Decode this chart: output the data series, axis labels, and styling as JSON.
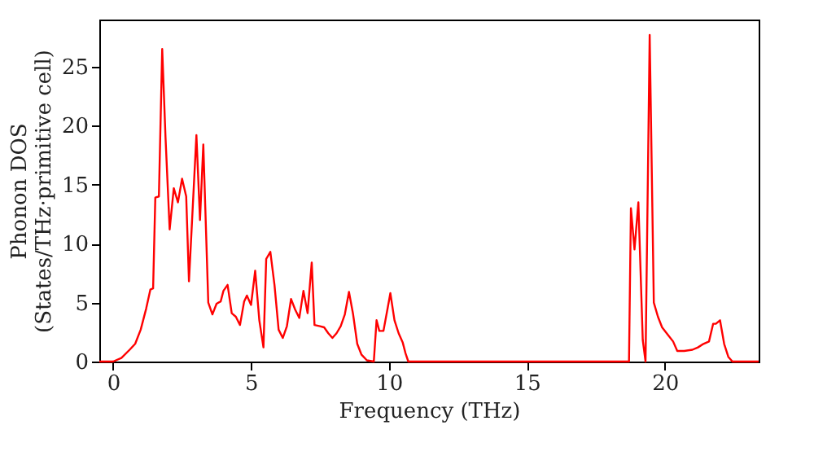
{
  "chart_data": {
    "type": "line",
    "xlabel": "Frequency (THz)",
    "ylabel": "Phonon DOS\n(States/THz·primitive cell)",
    "x": [
      -0.5,
      0.0,
      0.3,
      0.6,
      0.8,
      1.0,
      1.2,
      1.35,
      1.45,
      1.53,
      1.66,
      1.78,
      1.9,
      2.05,
      2.2,
      2.35,
      2.5,
      2.65,
      2.75,
      3.02,
      3.15,
      3.27,
      3.45,
      3.6,
      3.75,
      3.9,
      4.0,
      4.15,
      4.3,
      4.45,
      4.6,
      4.75,
      4.85,
      5.0,
      5.15,
      5.3,
      5.45,
      5.55,
      5.7,
      5.85,
      6.0,
      6.15,
      6.3,
      6.45,
      6.6,
      6.75,
      6.9,
      7.05,
      7.2,
      7.3,
      7.5,
      7.65,
      7.8,
      7.95,
      8.1,
      8.25,
      8.4,
      8.55,
      8.7,
      8.85,
      9.0,
      9.2,
      9.45,
      9.55,
      9.65,
      9.8,
      9.95,
      10.05,
      10.2,
      10.35,
      10.5,
      10.6,
      10.7,
      18.7,
      18.77,
      18.9,
      19.04,
      19.2,
      19.3,
      19.45,
      19.6,
      19.75,
      19.9,
      20.1,
      20.3,
      20.45,
      20.7,
      21.0,
      21.2,
      21.4,
      21.6,
      21.75,
      21.85,
      22.0,
      22.15,
      22.3,
      22.45,
      23.4
    ],
    "series": [
      {
        "color": "#ff0000",
        "values": [
          0,
          0,
          0.3,
          1.0,
          1.5,
          2.7,
          4.5,
          6.1,
          6.2,
          13.9,
          14.0,
          26.5,
          19,
          11.2,
          14.7,
          13.5,
          15.5,
          14,
          6.8,
          19.2,
          12,
          18.4,
          5,
          4.0,
          4.9,
          5.1,
          6.0,
          6.5,
          4.1,
          3.8,
          3.1,
          5.1,
          5.6,
          4.8,
          7.7,
          3.5,
          1.2,
          8.7,
          9.3,
          6.5,
          2.7,
          2.0,
          3.0,
          5.3,
          4.4,
          3.7,
          6.0,
          4.1,
          8.4,
          3.1,
          3.0,
          2.9,
          2.4,
          2.0,
          2.4,
          3.0,
          4.0,
          5.9,
          4.0,
          1.5,
          0.6,
          0.1,
          0,
          3.5,
          2.6,
          2.6,
          4.5,
          5.8,
          3.5,
          2.4,
          1.6,
          0.7,
          0,
          0,
          13.0,
          9.5,
          13.5,
          1.8,
          0,
          27.7,
          5.0,
          3.8,
          2.9,
          2.3,
          1.7,
          0.9,
          0.9,
          1.0,
          1.2,
          1.5,
          1.7,
          3.2,
          3.2,
          3.5,
          1.5,
          0.4,
          0,
          0
        ]
      }
    ],
    "xlim": [
      -0.5,
      23.4
    ],
    "ylim": [
      0,
      29
    ],
    "xticks": [
      0,
      5,
      10,
      15,
      20
    ],
    "yticks": [
      0,
      5,
      10,
      15,
      20,
      25
    ],
    "grid": false,
    "legend": false,
    "line_style": "solid",
    "marker": "none"
  }
}
